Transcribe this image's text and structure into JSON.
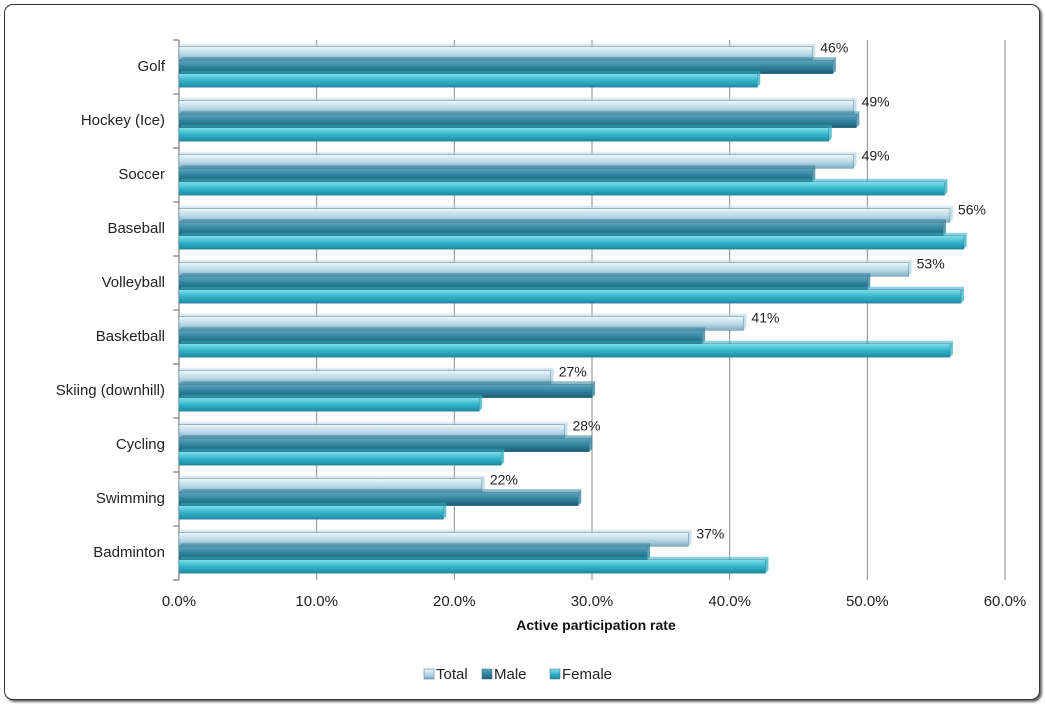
{
  "chart_data": {
    "type": "bar",
    "orientation": "horizontal",
    "categories": [
      "Golf",
      "Hockey (Ice)",
      "Soccer",
      "Baseball",
      "Volleyball",
      "Basketball",
      "Skiing (downhill)",
      "Cycling",
      "Swimming",
      "Badminton"
    ],
    "series": [
      {
        "name": "Total",
        "values": [
          46,
          49,
          49,
          56,
          53,
          41,
          27,
          28,
          22,
          37
        ],
        "color": "#b7d7e6"
      },
      {
        "name": "Male",
        "values": [
          47.5,
          49.2,
          46,
          55.5,
          50,
          38,
          30,
          29.8,
          29,
          34
        ],
        "color": "#2d7f9a"
      },
      {
        "name": "Female",
        "values": [
          42,
          47.2,
          55.6,
          57,
          56.8,
          56,
          21.8,
          23.4,
          19.2,
          42.6
        ],
        "color": "#2fb0c7"
      }
    ],
    "data_labels": [
      "46%",
      "49%",
      "49%",
      "56%",
      "53%",
      "41%",
      "27%",
      "28%",
      "22%",
      "37%"
    ],
    "x_ticks": [
      "0.0%",
      "10.0%",
      "20.0%",
      "30.0%",
      "40.0%",
      "50.0%",
      "60.0%"
    ],
    "xlim": [
      0,
      60
    ],
    "xlabel": "Active participation rate",
    "ylabel": "",
    "title": "",
    "grid": true,
    "legend_position": "bottom"
  }
}
